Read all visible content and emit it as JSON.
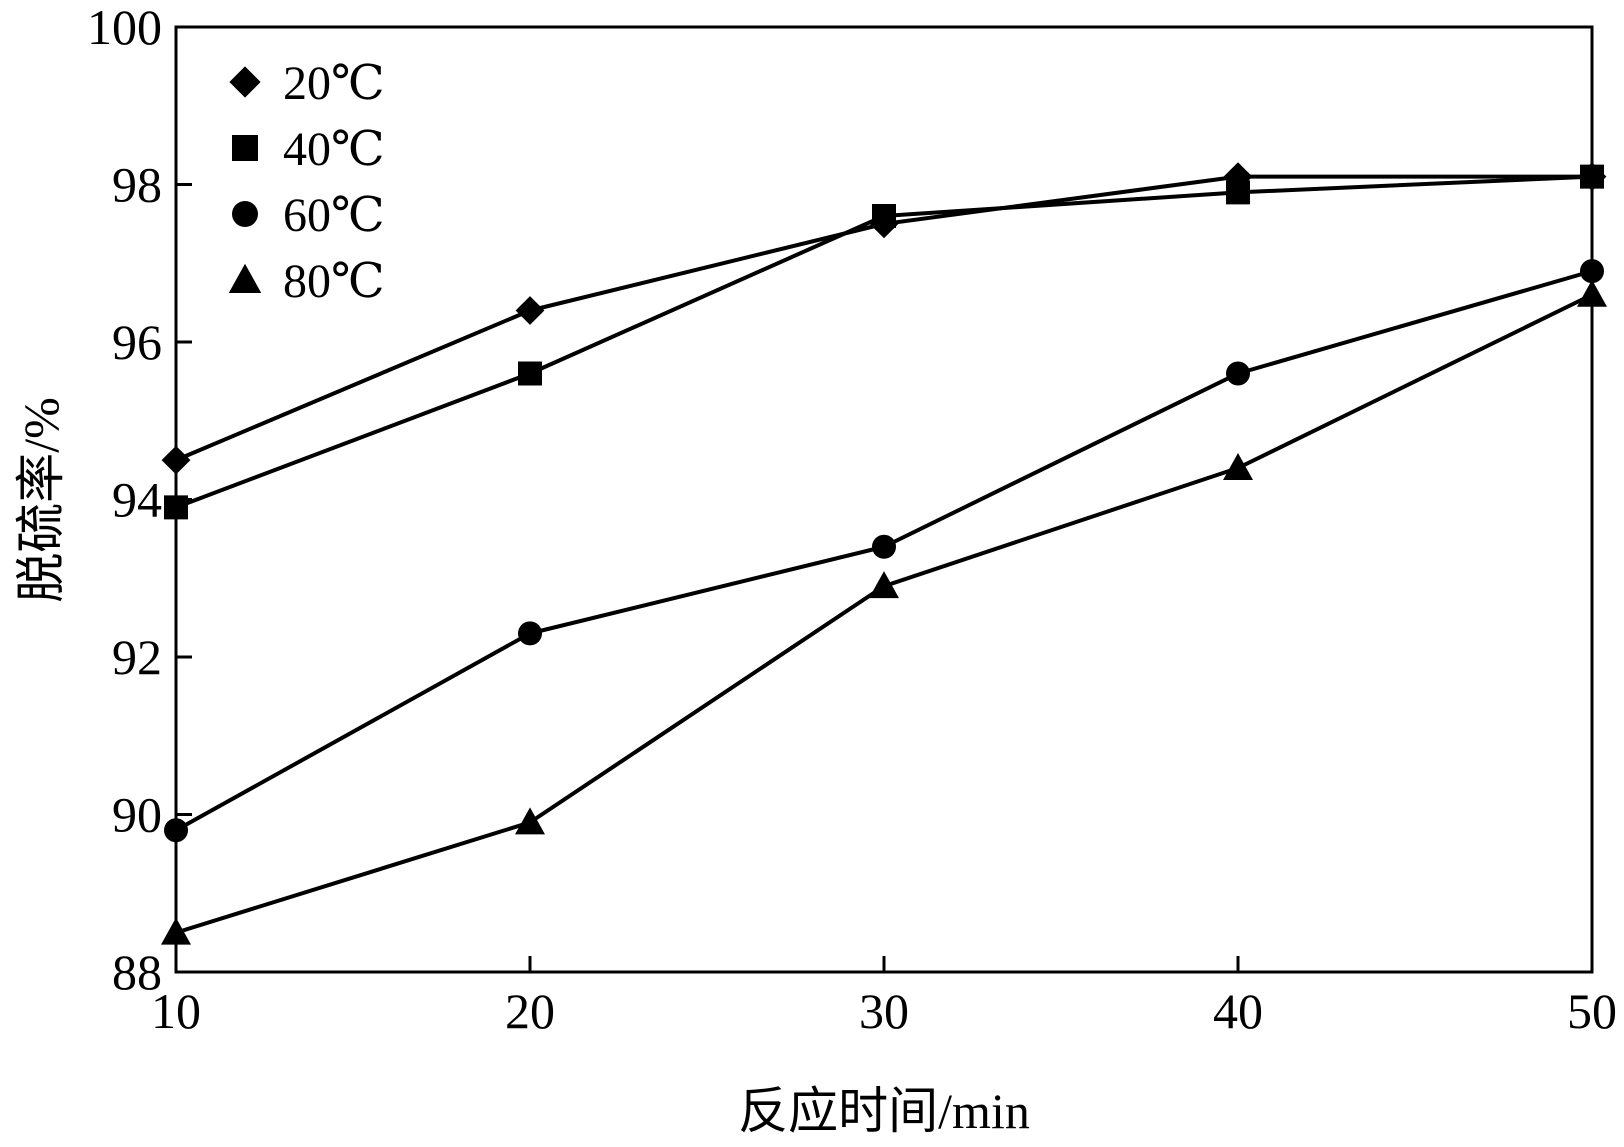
{
  "chart_data": {
    "type": "line",
    "title": "",
    "xlabel": "反应时间/min",
    "ylabel": "脱硫率/%",
    "x": [
      10,
      20,
      30,
      40,
      50
    ],
    "xlim": [
      10,
      50
    ],
    "ylim": [
      88,
      100
    ],
    "xticks": [
      10,
      20,
      30,
      40,
      50
    ],
    "yticks": [
      88,
      90,
      92,
      94,
      96,
      98,
      100
    ],
    "grid": false,
    "legend_position": "top-left",
    "series": [
      {
        "name": "20℃",
        "marker": "diamond",
        "values": [
          94.5,
          96.4,
          97.5,
          98.1,
          98.1
        ]
      },
      {
        "name": "40℃",
        "marker": "square",
        "values": [
          93.9,
          95.6,
          97.6,
          97.9,
          98.1
        ]
      },
      {
        "name": "60℃",
        "marker": "circle",
        "values": [
          89.8,
          92.3,
          93.4,
          95.6,
          96.9
        ]
      },
      {
        "name": "80℃",
        "marker": "triangle",
        "values": [
          88.5,
          89.9,
          92.9,
          94.4,
          96.6
        ]
      }
    ],
    "line_color": "#000000"
  }
}
